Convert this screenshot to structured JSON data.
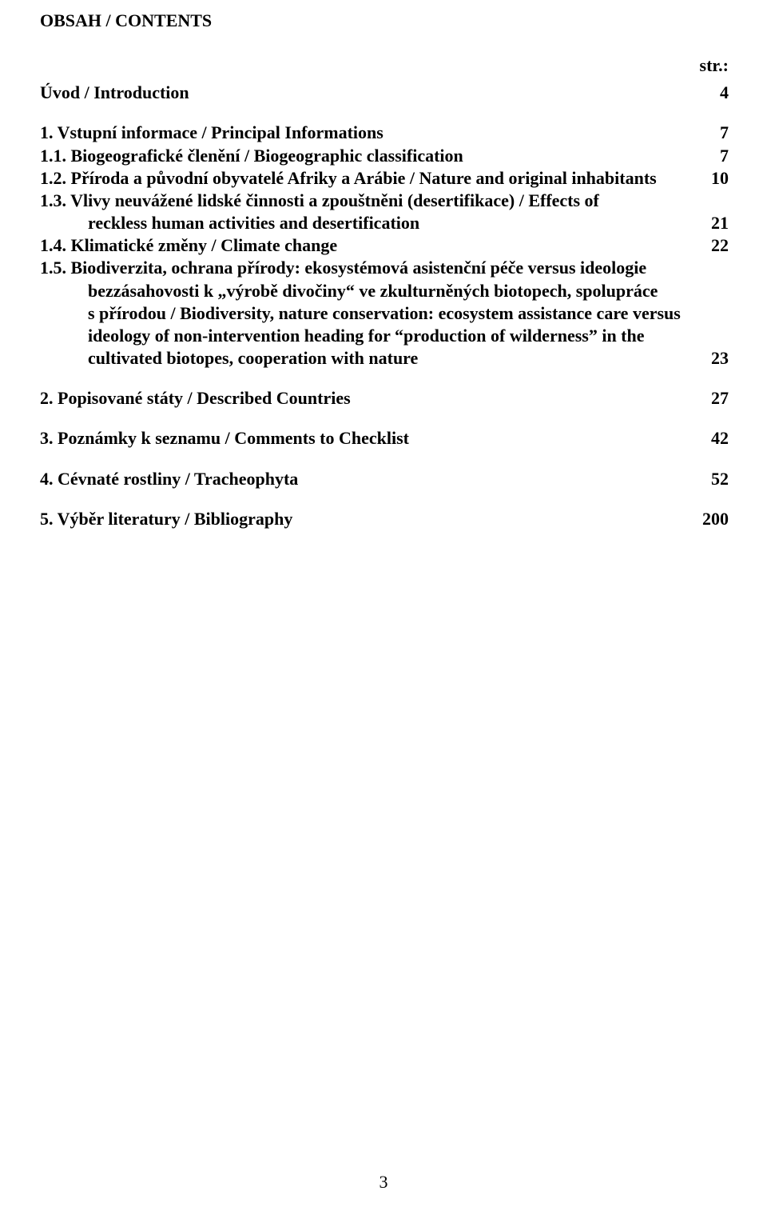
{
  "header": "OBSAH /  CONTENTS",
  "str_label": "str.:",
  "intro": {
    "text": "Úvod  / Introduction",
    "page": "4"
  },
  "s1": {
    "text": "1. Vstupní informace / Principal Informations",
    "page": "7"
  },
  "s11": {
    "text": "1.1. Biogeografické členění /        Biogeographic classification",
    "page": "7"
  },
  "s12": {
    "text": "1.2. Příroda a původní obyvatelé Afriky a Arábie / Nature and original inhabitants",
    "page": "10"
  },
  "s13a": {
    "text": "1.3. Vlivy neuvážené lidské činnosti a zpouštněni (desertifikace) / Effects of"
  },
  "s13b": {
    "text": "reckless human activities and desertification",
    "page": "21"
  },
  "s14": {
    "text": "1.4. Klimatické změny / Climate change",
    "page": "22"
  },
  "s15a": {
    "text": "1.5. Biodiverzita, ochrana přírody: ekosystémová asistenční péče versus ideologie"
  },
  "s15b": {
    "text": "bezzásahovosti k „výrobě divočiny“ ve zkulturněných biotopech,  spolupráce"
  },
  "s15c": {
    "text": "s přírodou / Biodiversity, nature conservation: ecosystem  assistance care versus"
  },
  "s15d": {
    "text": "ideology of non-intervention heading for “production of wilderness” in the"
  },
  "s15e": {
    "text": "cultivated biotopes, cooperation with nature",
    "page": "23"
  },
  "s2": {
    "text": "2. Popisované státy / Described Countries",
    "page": "27"
  },
  "s3": {
    "text": "3. Poznámky k seznamu / Comments to Checklist",
    "page": "42"
  },
  "s4": {
    "text": "4. Cévnaté rostliny / Tracheophyta",
    "page": "52"
  },
  "s5": {
    "text": "5. Výběr literatury / Bibliography",
    "page": "200"
  },
  "page_number": "3"
}
